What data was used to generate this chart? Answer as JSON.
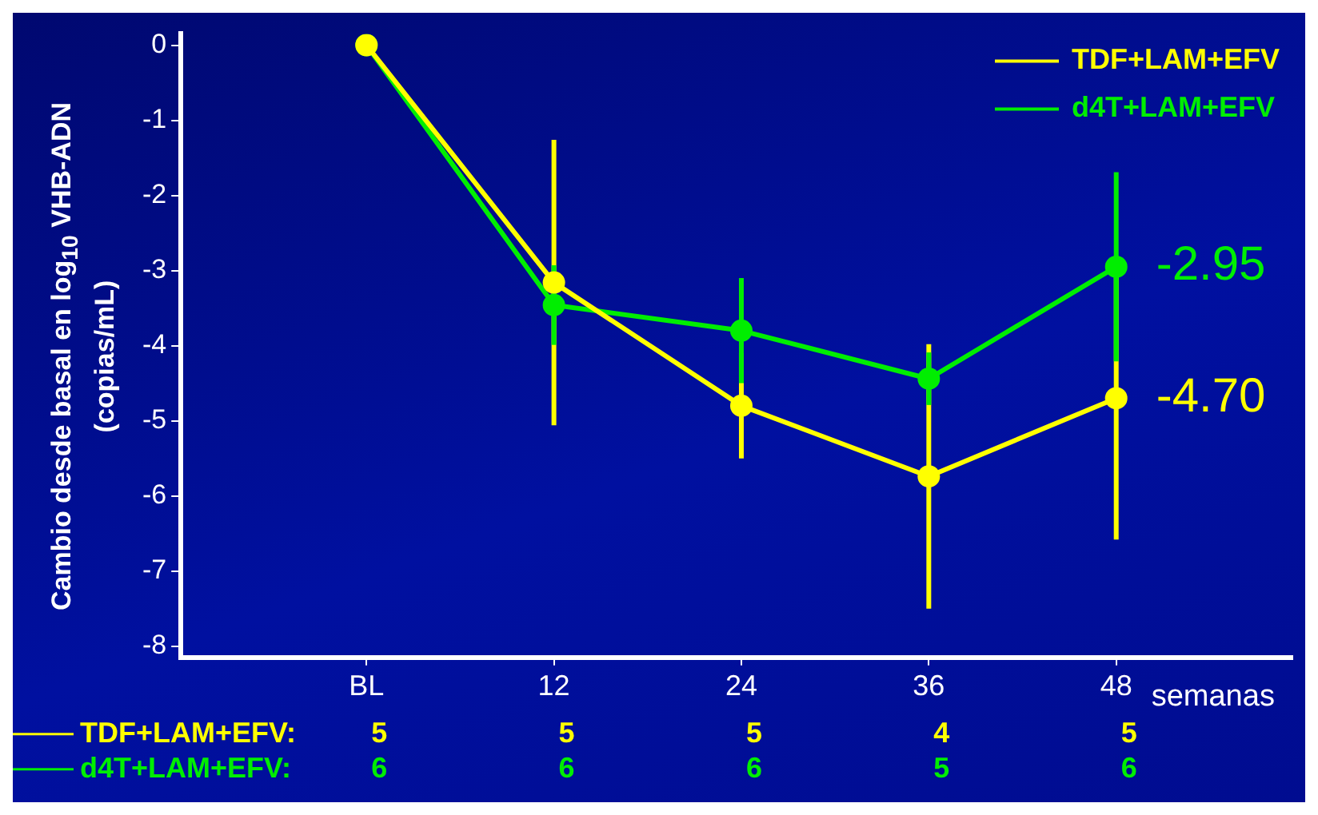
{
  "chart_data": {
    "type": "line",
    "ylabel": "Cambio desde basal en log$_{10}$ VHB-ADN (copias/mL)",
    "xlabel": "semanas",
    "categories": [
      "BL",
      "12",
      "24",
      "36",
      "48"
    ],
    "series": [
      {
        "name": "TDF+LAM+EFV",
        "color": "#ffff00",
        "values": [
          0,
          -3.16,
          -4.8,
          -5.74,
          -4.7
        ],
        "errors": [
          null,
          1.9,
          0.7,
          1.76,
          1.88
        ]
      },
      {
        "name": "d4T+LAM+EFV",
        "color": "#00ee00",
        "values": [
          0,
          -3.46,
          -3.8,
          -4.44,
          -2.95
        ],
        "errors": [
          null,
          0.53,
          0.7,
          0.35,
          1.26
        ]
      }
    ],
    "ylim": [
      -8.15,
      0.15
    ],
    "yticks": [
      -8,
      -7,
      -6,
      -5,
      -4,
      -3,
      -2,
      -1,
      0
    ],
    "legend": "top right",
    "marker": "circle",
    "line_style": "solid",
    "grid": false,
    "annotations": [
      {
        "text": "-2.95",
        "x": "48",
        "y": -2.95
      },
      {
        "text": "-4.70",
        "x": "48",
        "y": -4.7
      },
      "TDF+LAM+EFV:",
      "5",
      "5",
      "5",
      "4",
      "5",
      "d4T+LAM+EFV:",
      "6",
      "6",
      "6",
      "5",
      "6"
    ]
  }
}
